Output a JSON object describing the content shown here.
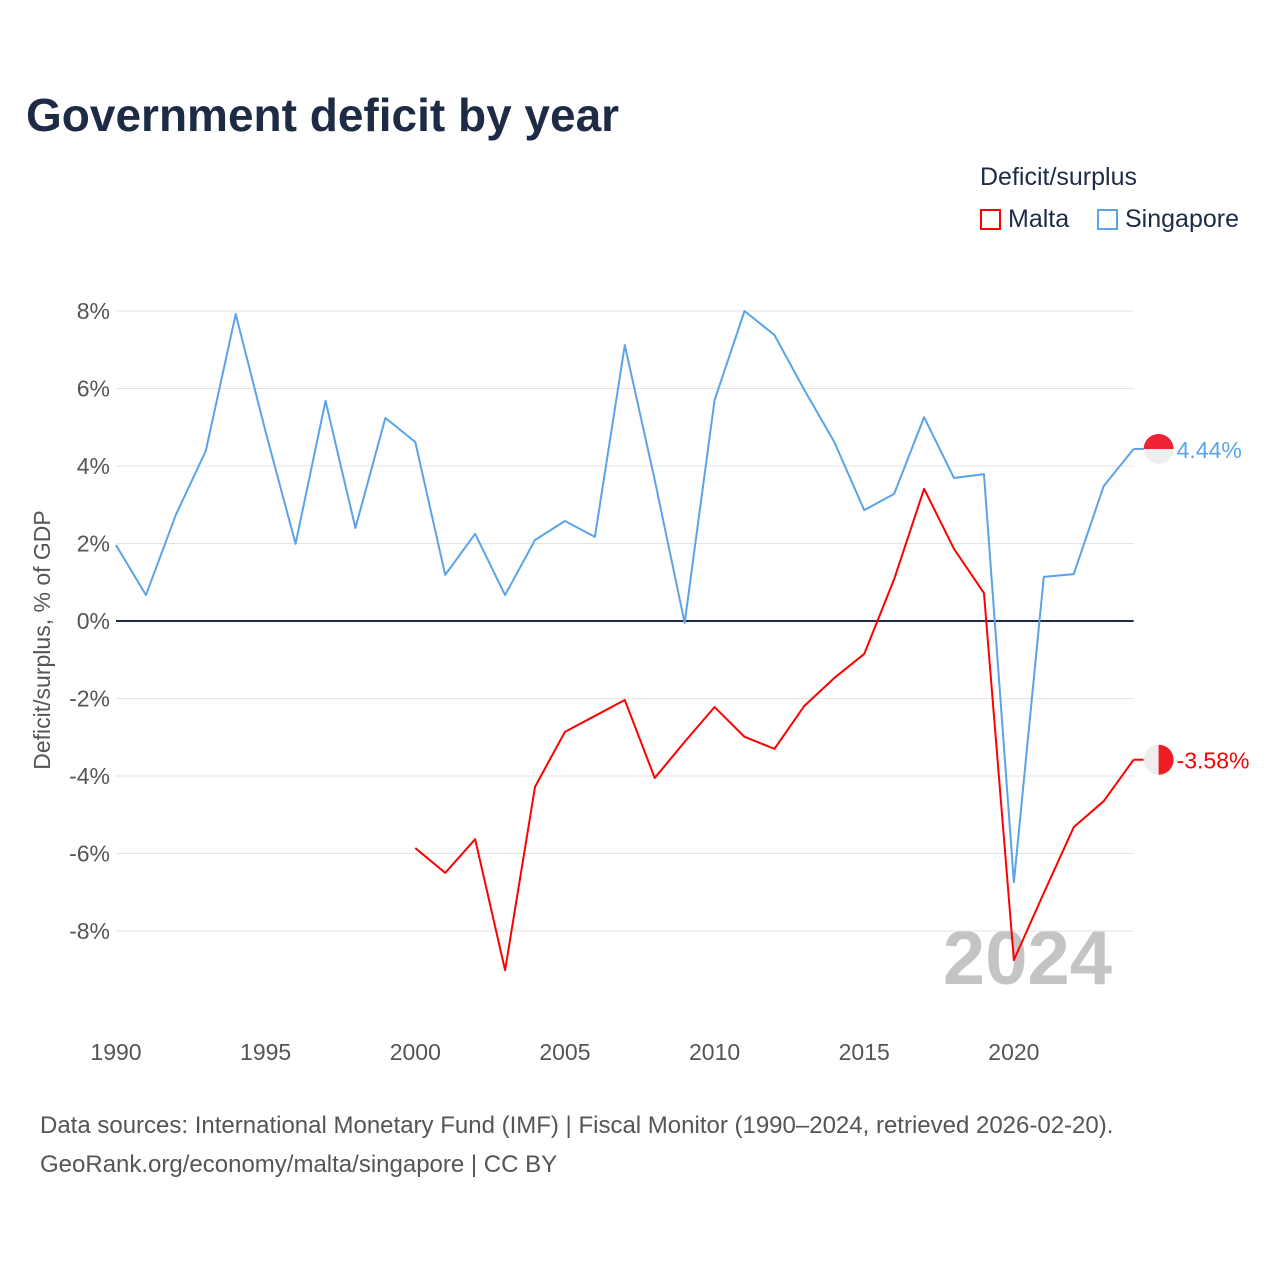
{
  "chart_data": {
    "type": "line",
    "title": "Government deficit by year",
    "ylabel": "Deficit/surplus, % of GDP",
    "xlabel": "",
    "legend_title": "Deficit/surplus",
    "legend_position": "top-right",
    "xlim": [
      1990,
      2024
    ],
    "ylim": [
      -10,
      8.3
    ],
    "x_ticks": [
      1990,
      1995,
      2000,
      2005,
      2010,
      2015,
      2020
    ],
    "x_tick_labels": [
      "1990",
      "1995",
      "2000",
      "2005",
      "2010",
      "2015",
      "2020"
    ],
    "y_ticks": [
      8,
      6,
      4,
      2,
      0,
      -2,
      -4,
      -6,
      -8
    ],
    "y_tick_labels": [
      "8%",
      "6%",
      "4%",
      "2%",
      "0%",
      "-2%",
      "-4%",
      "-6%",
      "-8%"
    ],
    "grid": true,
    "year_watermark": "2024",
    "series": [
      {
        "name": "Malta",
        "color": "#ff0000",
        "end_label": "-3.58%",
        "x": [
          2000,
          2001,
          2002,
          2003,
          2004,
          2005,
          2006,
          2007,
          2008,
          2009,
          2010,
          2011,
          2012,
          2013,
          2014,
          2015,
          2016,
          2017,
          2018,
          2019,
          2020,
          2021,
          2022,
          2023,
          2024
        ],
        "values": [
          -5.86,
          -6.5,
          -5.63,
          -9.01,
          -4.28,
          -2.86,
          -2.45,
          -2.04,
          -4.05,
          -3.12,
          -2.22,
          -2.99,
          -3.3,
          -2.19,
          -1.47,
          -0.85,
          1.08,
          3.41,
          1.86,
          0.72,
          -8.75,
          -7.02,
          -5.32,
          -4.65,
          -3.58
        ]
      },
      {
        "name": "Singapore",
        "color": "#5ba3e8",
        "end_label": "4.44%",
        "x": [
          1990,
          1991,
          1992,
          1993,
          1994,
          1995,
          1996,
          1997,
          1998,
          1999,
          2000,
          2001,
          2002,
          2003,
          2004,
          2005,
          2006,
          2007,
          2008,
          2009,
          2010,
          2011,
          2012,
          2013,
          2014,
          2015,
          2016,
          2017,
          2018,
          2019,
          2020,
          2021,
          2022,
          2023,
          2024
        ],
        "values": [
          1.96,
          0.67,
          2.74,
          4.39,
          7.92,
          4.88,
          1.99,
          5.68,
          2.4,
          5.24,
          4.62,
          1.19,
          2.25,
          0.67,
          2.09,
          2.58,
          2.17,
          7.12,
          3.64,
          -0.05,
          5.7,
          8.0,
          7.38,
          5.96,
          4.62,
          2.86,
          3.28,
          5.26,
          3.69,
          3.79,
          -6.74,
          1.14,
          1.21,
          3.48,
          4.44
        ]
      }
    ]
  },
  "source": {
    "line1": "Data sources: International Monetary Fund (IMF) | Fiscal Monitor (1990–2024, retrieved 2026-02-20).",
    "line2": "GeoRank.org/economy/malta/singapore | CC BY"
  }
}
